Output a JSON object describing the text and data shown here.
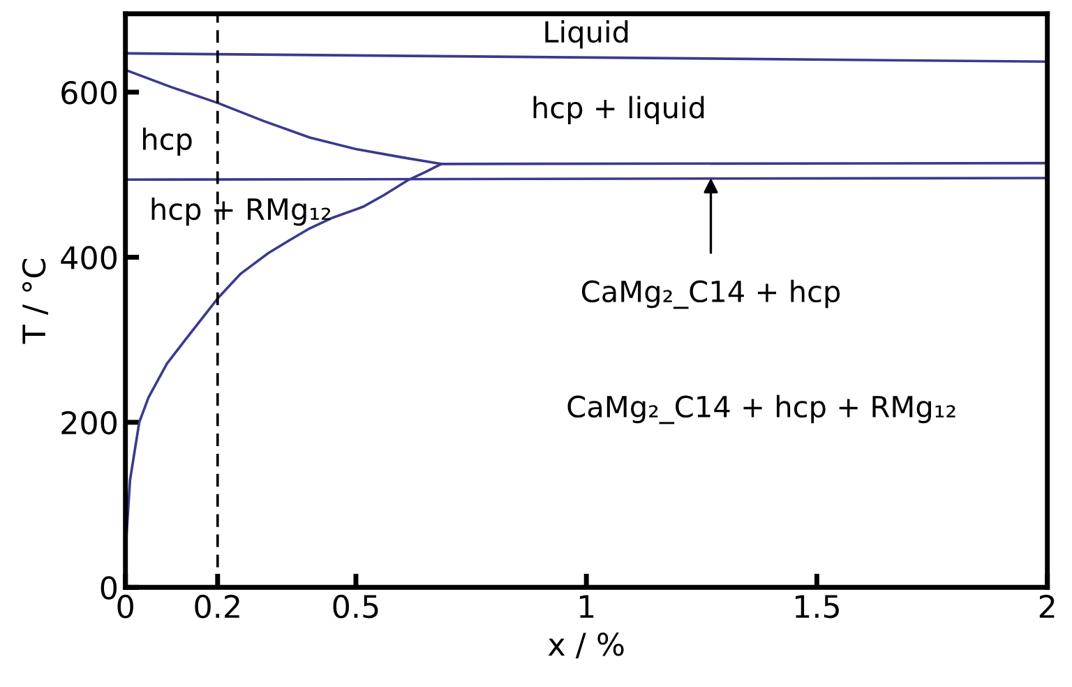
{
  "chart_data": {
    "type": "line",
    "xlabel": "x / %",
    "ylabel": "T / °C",
    "xlim": [
      0,
      2
    ],
    "ylim": [
      0,
      695
    ],
    "xticks": [
      0,
      0.2,
      0.5,
      1,
      1.5,
      2
    ],
    "yticks": [
      0,
      200,
      400,
      600
    ],
    "grid": false,
    "legend": false,
    "marker": "none",
    "line_style": "solid",
    "series": [
      {
        "color": "#3a3a8c",
        "x": [
          0,
          2
        ],
        "values": [
          647,
          637
        ]
      },
      {
        "color": "#3a3a8c",
        "x": [
          0,
          0.1,
          0.2,
          0.3,
          0.4,
          0.5,
          0.6,
          0.685,
          2
        ],
        "values": [
          627,
          606,
          587,
          565,
          545,
          531,
          521,
          513,
          514
        ]
      },
      {
        "color": "#3a3a8c",
        "x": [
          0,
          2
        ],
        "values": [
          494,
          496
        ]
      },
      {
        "color": "#3a3a8c",
        "x": [
          0,
          0.002,
          0.01,
          0.03,
          0.05,
          0.09,
          0.13,
          0.2,
          0.25,
          0.31,
          0.36,
          0.4,
          0.45,
          0.515,
          0.56,
          0.615,
          0.65,
          0.685
        ],
        "values": [
          0,
          60,
          130,
          200,
          230,
          271,
          300,
          350,
          380,
          405,
          422,
          435,
          448,
          461,
          475,
          494,
          503,
          513
        ]
      }
    ],
    "ref_lines": [
      {
        "axis": "x",
        "value": 0.2,
        "color": "#000000",
        "line_style": "dashed"
      }
    ],
    "annotations": [
      "Liquid",
      "hcp + liquid",
      "hcp",
      "hcp + RMg₁₂",
      {
        "text": "CaMg₂_C14 + hcp",
        "x": 1.27,
        "y": 496
      },
      "CaMg₂_C14 + hcp + RMg₁₂"
    ]
  }
}
